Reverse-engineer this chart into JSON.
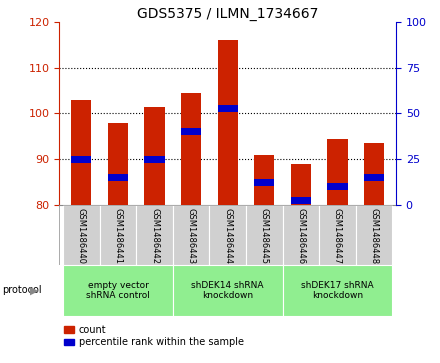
{
  "title": "GDS5375 / ILMN_1734667",
  "samples": [
    "GSM1486440",
    "GSM1486441",
    "GSM1486442",
    "GSM1486443",
    "GSM1486444",
    "GSM1486445",
    "GSM1486446",
    "GSM1486447",
    "GSM1486448"
  ],
  "count_values": [
    103,
    98,
    101.5,
    104.5,
    116,
    91,
    89,
    94.5,
    93.5
  ],
  "percentile_values": [
    90,
    86,
    90,
    96,
    101,
    85,
    81,
    84,
    86
  ],
  "ylim_left": [
    80,
    120
  ],
  "ylim_right": [
    0,
    100
  ],
  "yticks_left": [
    80,
    90,
    100,
    110,
    120
  ],
  "yticks_right": [
    0,
    25,
    50,
    75,
    100
  ],
  "groups": [
    {
      "label": "empty vector\nshRNA control",
      "start": 0,
      "end": 3
    },
    {
      "label": "shDEK14 shRNA\nknockdown",
      "start": 3,
      "end": 6
    },
    {
      "label": "shDEK17 shRNA\nknockdown",
      "start": 6,
      "end": 9
    }
  ],
  "bar_color": "#cc2200",
  "percentile_color": "#0000cc",
  "bar_width": 0.55,
  "left_axis_color": "#cc2200",
  "right_axis_color": "#0000cc",
  "group_color": "#90ee90",
  "sample_box_color": "#d0d0d0",
  "legend_count_label": "count",
  "legend_percentile_label": "percentile rank within the sample"
}
